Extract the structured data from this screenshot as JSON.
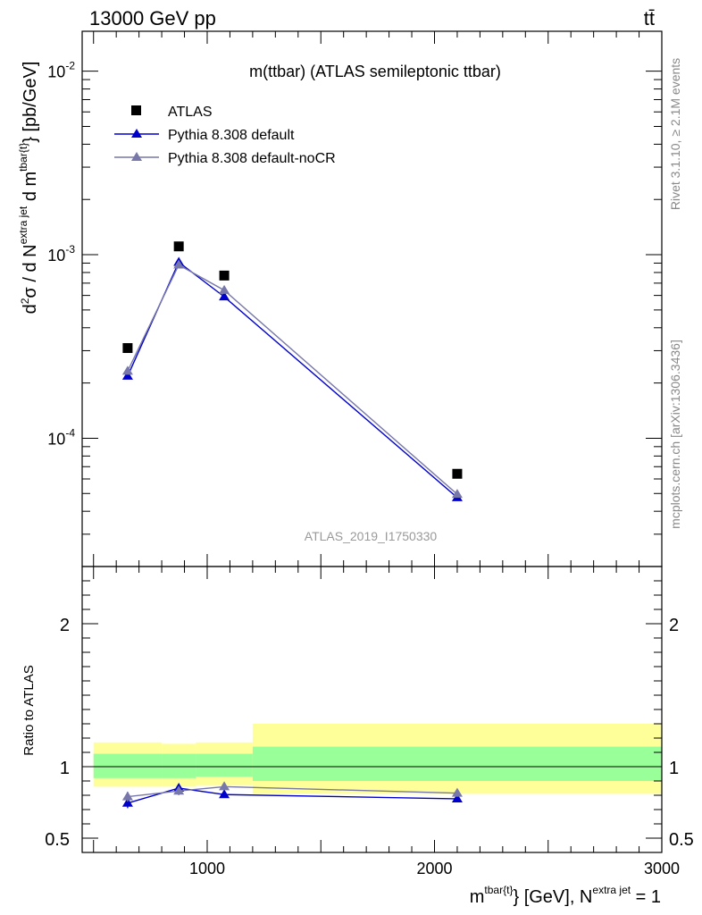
{
  "header": {
    "left_label": "13000 GeV pp",
    "right_label": "tt̄"
  },
  "side_labels": {
    "rivet": "Rivet 3.1.10, ≥ 2.1M events",
    "mcplots": "mcplots.cern.ch [arXiv:1306.3436]"
  },
  "chart_data": [
    {
      "type": "scatter",
      "panel": "main",
      "title": "m(ttbar) (ATLAS semileptonic ttbar)",
      "watermark": "ATLAS_2019_I1750330",
      "ylabel": "d²σ / d N^{extra jet} d m^{tbar{t}} [pb/GeV]",
      "yscale": "log",
      "ylim": [
        2e-05,
        0.0165
      ],
      "xlim": [
        450,
        3000
      ],
      "ytick_labels": [
        "10^-4",
        "10^-3",
        "10^-2"
      ],
      "series": [
        {
          "name": "ATLAS",
          "color": "#000000",
          "marker": "square",
          "x": [
            650,
            875,
            1075,
            2100
          ],
          "y": [
            0.00031,
            0.00111,
            0.00077,
            6.4e-05
          ]
        },
        {
          "name": "Pythia 8.308 default",
          "color": "#0000cc",
          "marker": "triangle",
          "x": [
            650,
            875,
            1075,
            2100
          ],
          "y": [
            0.000218,
            0.00091,
            0.00059,
            4.75e-05
          ]
        },
        {
          "name": "Pythia 8.308 default-noCR",
          "color": "#7777aa",
          "marker": "triangle",
          "x": [
            650,
            875,
            1075,
            2100
          ],
          "y": [
            0.000232,
            0.00088,
            0.00064,
            4.95e-05
          ]
        }
      ]
    },
    {
      "type": "line",
      "panel": "ratio",
      "ylabel": "Ratio to ATLAS",
      "xlabel": "m^{tbar{t}} [GeV], N^{extra jet} = 1",
      "ylim": [
        0.4,
        2.4
      ],
      "xlim": [
        450,
        3000
      ],
      "xtick_labels": [
        "1000",
        "2000",
        "3000"
      ],
      "ytick_labels": [
        "0.5",
        "1",
        "2"
      ],
      "bands": {
        "x_edges": [
          500,
          800,
          950,
          1200,
          3000
        ],
        "outer_low": [
          0.86,
          0.86,
          0.87,
          0.81
        ],
        "outer_high": [
          1.17,
          1.16,
          1.17,
          1.3
        ],
        "inner_low": [
          0.92,
          0.92,
          0.93,
          0.9
        ],
        "inner_high": [
          1.09,
          1.09,
          1.09,
          1.14
        ],
        "outer_color": "#ffff99",
        "inner_color": "#99ff99"
      },
      "series": [
        {
          "name": "Pythia 8.308 default",
          "color": "#0000cc",
          "x": [
            650,
            875,
            1075,
            2100
          ],
          "y": [
            0.745,
            0.85,
            0.805,
            0.775
          ],
          "err": [
            0.035,
            0.03,
            0.022,
            0.025
          ]
        },
        {
          "name": "Pythia 8.308 default-noCR",
          "color": "#7777aa",
          "x": [
            650,
            875,
            1075,
            2100
          ],
          "y": [
            0.79,
            0.83,
            0.86,
            0.815
          ],
          "err": [
            0.035,
            0.03,
            0.022,
            0.025
          ]
        }
      ]
    }
  ]
}
